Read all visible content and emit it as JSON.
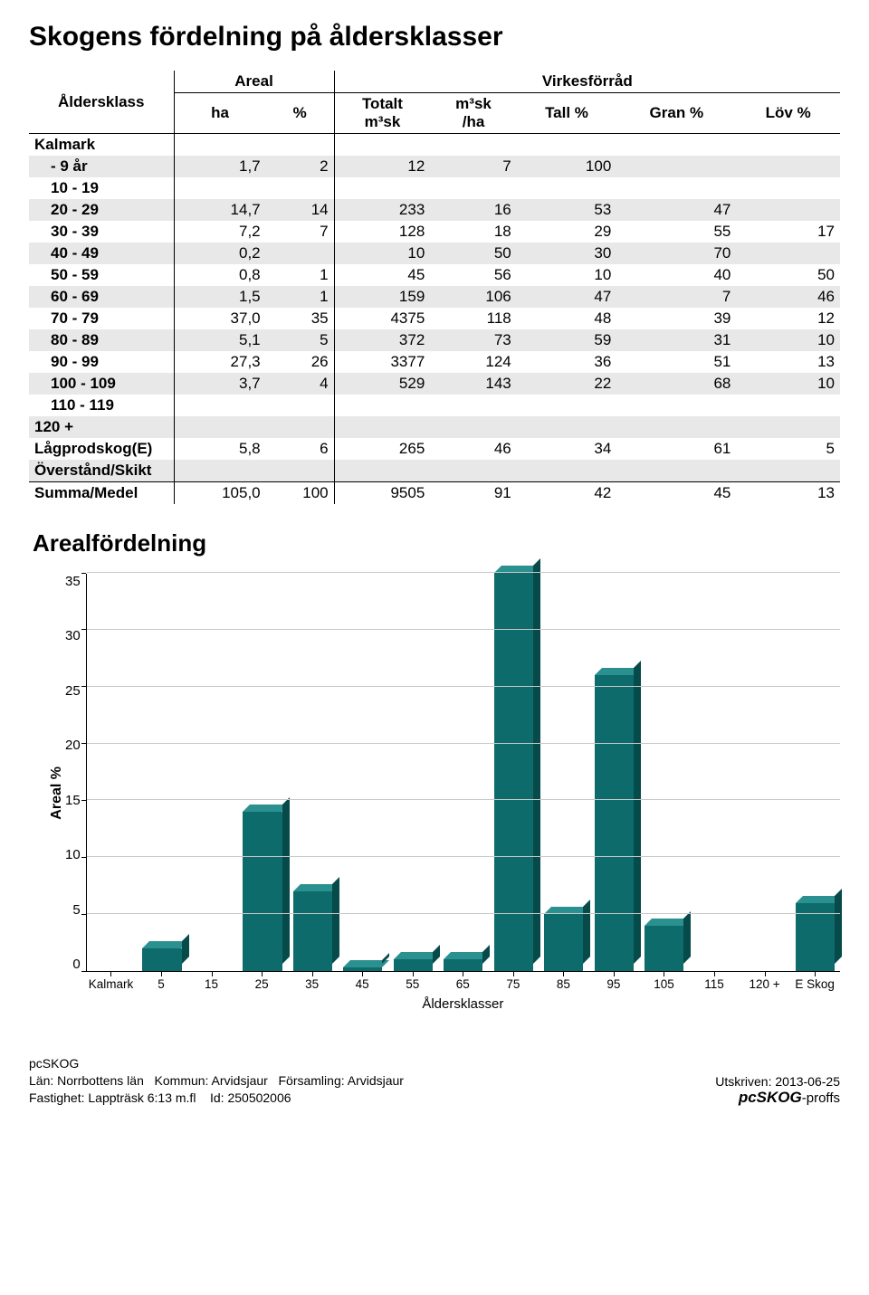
{
  "title": "Skogens fördelning på åldersklasser",
  "table": {
    "col_label": "Åldersklass",
    "group_areal": "Areal",
    "group_virkes": "Virkesförråd",
    "cols": {
      "ha": "ha",
      "pct": "%",
      "tot": "Totalt m³sk",
      "msk": "m³sk /ha",
      "tall": "Tall %",
      "gran": "Gran %",
      "lov": "Löv %"
    },
    "section": "Kalmark",
    "rows": [
      {
        "label": "-   9 år",
        "shade": true,
        "indent": true,
        "ha": "1,7",
        "pct": "2",
        "tot": "12",
        "msk": "7",
        "tall": "100",
        "gran": "",
        "lov": ""
      },
      {
        "label": "10 -  19",
        "shade": false,
        "indent": true,
        "ha": "",
        "pct": "",
        "tot": "",
        "msk": "",
        "tall": "",
        "gran": "",
        "lov": ""
      },
      {
        "label": "20 -  29",
        "shade": true,
        "indent": true,
        "ha": "14,7",
        "pct": "14",
        "tot": "233",
        "msk": "16",
        "tall": "53",
        "gran": "47",
        "lov": ""
      },
      {
        "label": "30 -  39",
        "shade": false,
        "indent": true,
        "ha": "7,2",
        "pct": "7",
        "tot": "128",
        "msk": "18",
        "tall": "29",
        "gran": "55",
        "lov": "17"
      },
      {
        "label": "40 -  49",
        "shade": true,
        "indent": true,
        "ha": "0,2",
        "pct": "",
        "tot": "10",
        "msk": "50",
        "tall": "30",
        "gran": "70",
        "lov": ""
      },
      {
        "label": "50 -  59",
        "shade": false,
        "indent": true,
        "ha": "0,8",
        "pct": "1",
        "tot": "45",
        "msk": "56",
        "tall": "10",
        "gran": "40",
        "lov": "50"
      },
      {
        "label": "60 -  69",
        "shade": true,
        "indent": true,
        "ha": "1,5",
        "pct": "1",
        "tot": "159",
        "msk": "106",
        "tall": "47",
        "gran": "7",
        "lov": "46"
      },
      {
        "label": "70 -  79",
        "shade": false,
        "indent": true,
        "ha": "37,0",
        "pct": "35",
        "tot": "4375",
        "msk": "118",
        "tall": "48",
        "gran": "39",
        "lov": "12"
      },
      {
        "label": "80 -  89",
        "shade": true,
        "indent": true,
        "ha": "5,1",
        "pct": "5",
        "tot": "372",
        "msk": "73",
        "tall": "59",
        "gran": "31",
        "lov": "10"
      },
      {
        "label": "90 -  99",
        "shade": false,
        "indent": true,
        "ha": "27,3",
        "pct": "26",
        "tot": "3377",
        "msk": "124",
        "tall": "36",
        "gran": "51",
        "lov": "13"
      },
      {
        "label": "100 - 109",
        "shade": true,
        "indent": true,
        "ha": "3,7",
        "pct": "4",
        "tot": "529",
        "msk": "143",
        "tall": "22",
        "gran": "68",
        "lov": "10"
      },
      {
        "label": "110 - 119",
        "shade": false,
        "indent": true,
        "ha": "",
        "pct": "",
        "tot": "",
        "msk": "",
        "tall": "",
        "gran": "",
        "lov": ""
      },
      {
        "label": "120 +",
        "shade": true,
        "indent": false,
        "ha": "",
        "pct": "",
        "tot": "",
        "msk": "",
        "tall": "",
        "gran": "",
        "lov": ""
      },
      {
        "label": "Lågprodskog(E)",
        "shade": false,
        "indent": false,
        "ha": "5,8",
        "pct": "6",
        "tot": "265",
        "msk": "46",
        "tall": "34",
        "gran": "61",
        "lov": "5"
      },
      {
        "label": "Överstånd/Skikt",
        "shade": true,
        "indent": false,
        "ha": "",
        "pct": "",
        "tot": "",
        "msk": "",
        "tall": "",
        "gran": "",
        "lov": ""
      }
    ],
    "summary": {
      "label": "Summa/Medel",
      "ha": "105,0",
      "pct": "100",
      "tot": "9505",
      "msk": "91",
      "tall": "42",
      "gran": "45",
      "lov": "13"
    }
  },
  "chart": {
    "title": "Arealfördelning",
    "ylabel": "Areal %",
    "xlabel": "Åldersklasser",
    "ymax": 35,
    "yticks": [
      35,
      30,
      25,
      20,
      15,
      10,
      5,
      0
    ],
    "bar_color_front": "#0d6b6b",
    "bar_color_top": "#2a9090",
    "bar_color_side": "#074a4a",
    "grid_color": "#c8c8c8",
    "categories": [
      "Kalmark",
      "5",
      "15",
      "25",
      "35",
      "45",
      "55",
      "65",
      "75",
      "85",
      "95",
      "105",
      "115",
      "120 +",
      "E Skog"
    ],
    "values": [
      0,
      2,
      0,
      14,
      7,
      0.3,
      1,
      1,
      35,
      5,
      26,
      4,
      0,
      0,
      6
    ]
  },
  "footer": {
    "app": "pcSKOG",
    "line2_a": "Län: Norrbottens län",
    "line2_b": "Kommun: Arvidsjaur",
    "line2_c": "Församling: Arvidsjaur",
    "line3_a": "Fastighet: Lappträsk 6:13 m.fl",
    "line3_b": "Id: 250502006",
    "printed": "Utskriven: 2013-06-25",
    "brand": "pcSKOG",
    "brand_suffix": "-proffs"
  }
}
